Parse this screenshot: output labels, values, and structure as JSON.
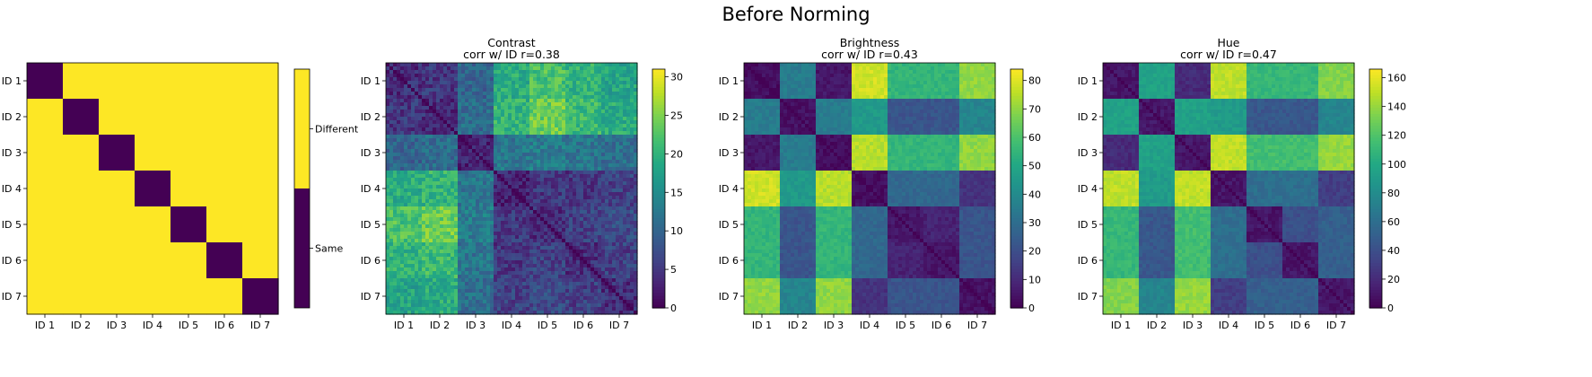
{
  "suptitle": "Before Norming",
  "chart_data": [
    {
      "type": "heatmap",
      "name": "identity",
      "title": "",
      "subtitle": "",
      "ids": [
        "ID 1",
        "ID 2",
        "ID 3",
        "ID 4",
        "ID 5",
        "ID 6",
        "ID 7"
      ],
      "block_size": 1,
      "diag": 0,
      "vmin": 0,
      "vmax": 1,
      "colorbar": {
        "categorical": true,
        "labels": [
          {
            "value": 0,
            "text": "Same"
          },
          {
            "value": 1,
            "text": "Different"
          }
        ]
      },
      "block_values": [
        [
          0,
          1,
          1,
          1,
          1,
          1,
          1
        ],
        [
          1,
          0,
          1,
          1,
          1,
          1,
          1
        ],
        [
          1,
          1,
          0,
          1,
          1,
          1,
          1
        ],
        [
          1,
          1,
          1,
          0,
          1,
          1,
          1
        ],
        [
          1,
          1,
          1,
          1,
          0,
          1,
          1
        ],
        [
          1,
          1,
          1,
          1,
          1,
          0,
          1
        ],
        [
          1,
          1,
          1,
          1,
          1,
          1,
          0
        ]
      ],
      "noise": 0,
      "colors": {
        "same": "#440154",
        "different": "#fde725"
      }
    },
    {
      "type": "heatmap",
      "name": "contrast",
      "title": "Contrast",
      "subtitle": "corr w/ ID r=0.38",
      "ids": [
        "ID 1",
        "ID 2",
        "ID 3",
        "ID 4",
        "ID 5",
        "ID 6",
        "ID 7"
      ],
      "block_size": 10,
      "diag": 0,
      "vmin": 0,
      "vmax": 31,
      "colorbar": {
        "ticks": [
          0,
          5,
          10,
          15,
          20,
          25,
          30
        ]
      },
      "block_values": [
        [
          4,
          5,
          10,
          19,
          22,
          20,
          18
        ],
        [
          5,
          4,
          11,
          20,
          24,
          21,
          19
        ],
        [
          10,
          11,
          3,
          12,
          13,
          12,
          11
        ],
        [
          19,
          20,
          12,
          3,
          5,
          5,
          6
        ],
        [
          22,
          24,
          13,
          5,
          4,
          6,
          7
        ],
        [
          20,
          21,
          12,
          5,
          6,
          4,
          6
        ],
        [
          18,
          19,
          11,
          6,
          7,
          6,
          4
        ]
      ],
      "noise": 3
    },
    {
      "type": "heatmap",
      "name": "brightness",
      "title": "Brightness",
      "subtitle": "corr w/ ID r=0.43",
      "ids": [
        "ID 1",
        "ID 2",
        "ID 3",
        "ID 4",
        "ID 5",
        "ID 6",
        "ID 7"
      ],
      "block_size": 10,
      "diag": 0,
      "vmin": 0,
      "vmax": 84,
      "colorbar": {
        "ticks": [
          0,
          10,
          20,
          30,
          40,
          50,
          60,
          70,
          80
        ]
      },
      "block_values": [
        [
          3,
          35,
          5,
          78,
          55,
          55,
          70
        ],
        [
          35,
          4,
          35,
          45,
          22,
          22,
          38
        ],
        [
          5,
          35,
          3,
          75,
          55,
          55,
          70
        ],
        [
          78,
          45,
          75,
          3,
          28,
          28,
          12
        ],
        [
          55,
          22,
          55,
          28,
          5,
          8,
          22
        ],
        [
          55,
          22,
          55,
          28,
          8,
          5,
          22
        ],
        [
          70,
          38,
          70,
          12,
          22,
          22,
          4
        ]
      ],
      "noise": 3
    },
    {
      "type": "heatmap",
      "name": "hue",
      "title": "Hue",
      "subtitle": "corr w/ ID r=0.47",
      "ids": [
        "ID 1",
        "ID 2",
        "ID 3",
        "ID 4",
        "ID 5",
        "ID 6",
        "ID 7"
      ],
      "block_size": 10,
      "diag": 0,
      "vmin": 0,
      "vmax": 166,
      "colorbar": {
        "ticks": [
          0,
          20,
          40,
          60,
          80,
          100,
          120,
          140,
          160
        ]
      },
      "block_values": [
        [
          10,
          95,
          20,
          150,
          110,
          110,
          135
        ],
        [
          95,
          10,
          95,
          90,
          45,
          45,
          75
        ],
        [
          20,
          95,
          10,
          150,
          115,
          115,
          140
        ],
        [
          150,
          90,
          150,
          10,
          60,
          60,
          30
        ],
        [
          110,
          45,
          115,
          60,
          10,
          40,
          50
        ],
        [
          110,
          45,
          115,
          60,
          40,
          10,
          50
        ],
        [
          135,
          75,
          140,
          30,
          50,
          50,
          10
        ]
      ],
      "noise": 6
    }
  ]
}
